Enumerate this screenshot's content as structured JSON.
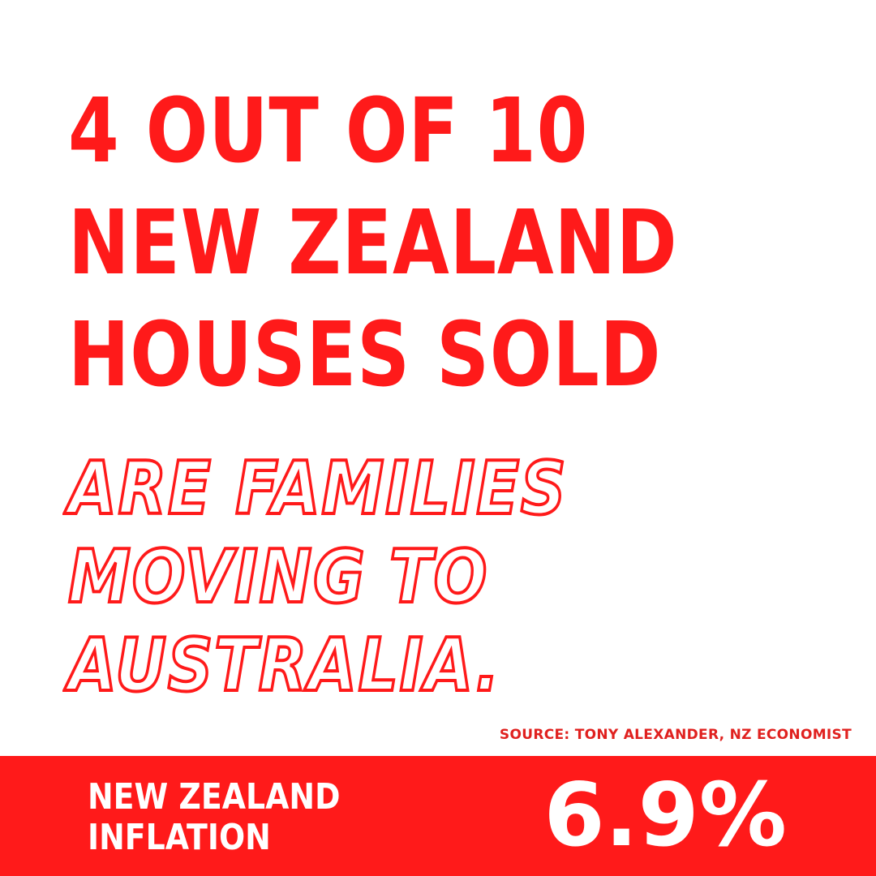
{
  "headline": {
    "lines": [
      "4 OUT OF 10",
      "NEW ZEALAND",
      "HOUSES SOLD"
    ]
  },
  "subheadline": {
    "lines": [
      "ARE FAMILIES",
      "MOVING TO",
      "AUSTRALIA."
    ]
  },
  "source": "SOURCE: TONY ALEXANDER, NZ ECONOMIST",
  "banner": {
    "label_lines": [
      "NEW ZEALAND",
      "INFLATION"
    ],
    "value": "6.9%"
  },
  "colors": {
    "accent": "#ff1a1a",
    "background": "#ffffff",
    "banner_text": "#ffffff"
  }
}
